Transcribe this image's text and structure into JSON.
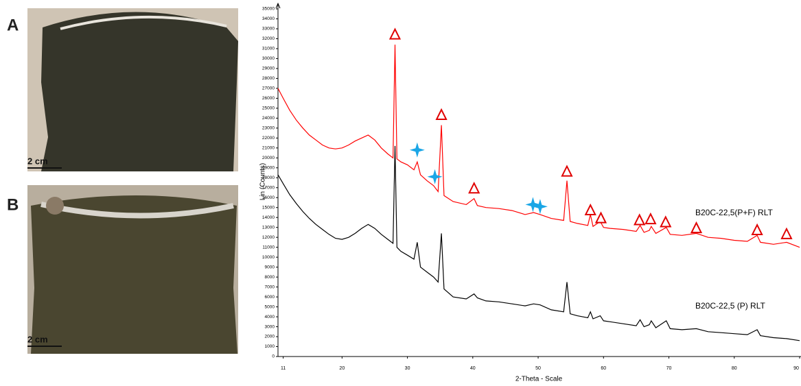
{
  "panels": [
    {
      "label": "A",
      "scale": "2 cm"
    },
    {
      "label": "B",
      "scale": "2 cm"
    }
  ],
  "chart_data": {
    "type": "line",
    "x_label": "2-Theta - Scale",
    "y_label": "Lin (Counts)",
    "xlim": [
      10.2,
      90
    ],
    "xticks": [
      11,
      20,
      30,
      40,
      50,
      60,
      70,
      80,
      90
    ],
    "ylim": [
      0,
      35000
    ],
    "yticks": [
      0,
      1000,
      2000,
      3000,
      4000,
      5000,
      6000,
      7000,
      8000,
      9000,
      10000,
      11000,
      12000,
      13000,
      14000,
      15000,
      16000,
      17000,
      18000,
      19000,
      20000,
      21000,
      22000,
      23000,
      24000,
      25000,
      26000,
      27000,
      28000,
      29000,
      30000,
      31000,
      32000,
      33000,
      34000,
      35000
    ],
    "x": [
      10.2,
      11,
      12,
      13,
      14,
      15,
      16,
      17,
      18,
      19,
      20,
      21,
      22,
      23,
      24,
      25,
      26,
      27,
      27.8,
      28.1,
      28.4,
      29,
      30,
      31,
      31.5,
      32,
      33,
      34,
      34.7,
      35.2,
      35.6,
      37,
      39,
      40.2,
      40.7,
      42,
      44,
      46,
      48,
      49.3,
      50.3,
      52,
      53.9,
      54.4,
      54.9,
      56,
      57.6,
      58,
      58.4,
      59.5,
      60,
      61,
      63,
      65,
      65.6,
      66.2,
      67,
      67.3,
      68,
      69.6,
      70.2,
      72,
      74.2,
      76,
      78,
      80,
      82,
      83.5,
      84,
      86,
      88,
      90
    ],
    "series": [
      {
        "name": "B20C-22,5(P+F) RLT",
        "color": "#ff0000",
        "values": [
          27000,
          26000,
          24800,
          23800,
          23000,
          22300,
          21800,
          21300,
          21000,
          20900,
          21000,
          21300,
          21700,
          22000,
          22300,
          21800,
          21000,
          20400,
          20000,
          31400,
          19900,
          19600,
          19300,
          18800,
          19600,
          18300,
          17700,
          17200,
          16600,
          23300,
          16200,
          15600,
          15300,
          15900,
          15200,
          15000,
          14900,
          14700,
          14300,
          14500,
          14300,
          13900,
          13700,
          17700,
          13600,
          13400,
          13200,
          14300,
          13100,
          13600,
          13000,
          12900,
          12800,
          12600,
          13200,
          12500,
          12700,
          13100,
          12400,
          13000,
          12300,
          12200,
          12400,
          12000,
          11900,
          11700,
          11600,
          12200,
          11500,
          11300,
          11500,
          11000
        ]
      },
      {
        "name": "B20C-22,5 (P) RLT",
        "color": "#000000",
        "values": [
          18300,
          17400,
          16300,
          15400,
          14600,
          13900,
          13300,
          12800,
          12300,
          11900,
          11800,
          12000,
          12400,
          12900,
          13300,
          12900,
          12300,
          11800,
          11400,
          21200,
          11000,
          10600,
          10200,
          9800,
          11500,
          9000,
          8500,
          8000,
          7500,
          12400,
          6800,
          6000,
          5800,
          6300,
          5900,
          5600,
          5500,
          5300,
          5100,
          5300,
          5200,
          4700,
          4500,
          7500,
          4300,
          4100,
          3900,
          4500,
          3800,
          4100,
          3600,
          3500,
          3300,
          3100,
          3700,
          3000,
          3200,
          3600,
          2900,
          3600,
          2800,
          2700,
          2800,
          2500,
          2400,
          2300,
          2200,
          2700,
          2100,
          1900,
          1800,
          1600
        ]
      }
    ],
    "markers": [
      {
        "shape": "triangle",
        "color": "#e00000",
        "x": [
          28.1,
          35.2,
          40.2,
          54.4,
          58,
          59.6,
          65.5,
          67.2,
          69.5,
          74.2,
          83.5,
          88
        ],
        "y": [
          32400,
          24300,
          16900,
          18600,
          14700,
          13900,
          13700,
          13800,
          13500,
          12900,
          12700,
          12300
        ]
      },
      {
        "shape": "star",
        "color": "#1aa6e6",
        "x": [
          31.5,
          34.2,
          49.2,
          50.3
        ],
        "y": [
          20800,
          18100,
          15300,
          15100
        ]
      }
    ]
  }
}
